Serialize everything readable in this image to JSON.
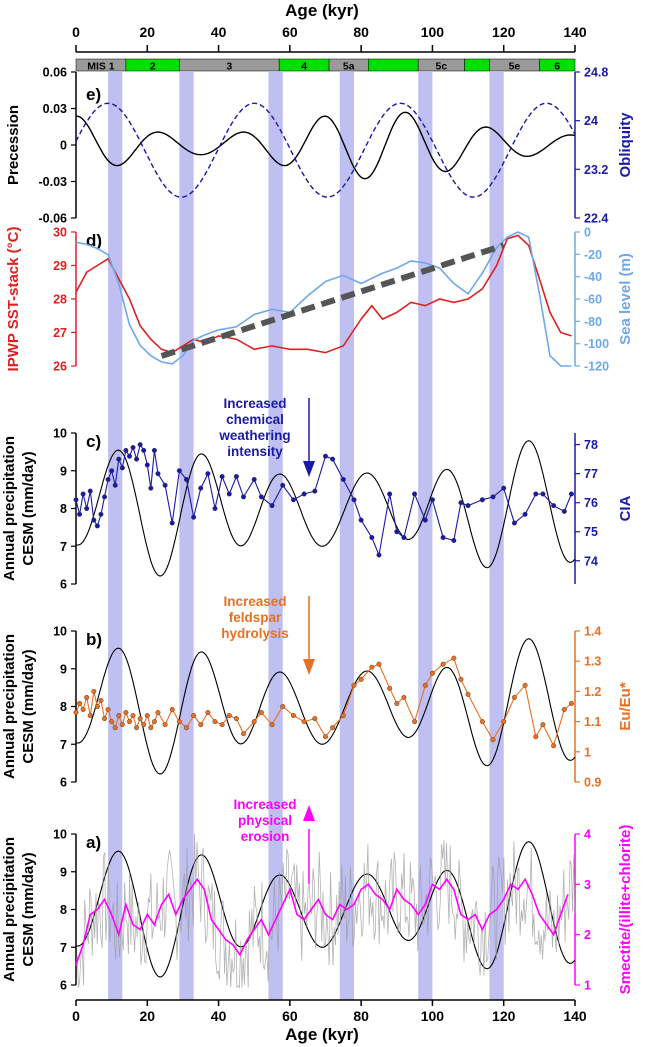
{
  "chart_data": {
    "type": "line",
    "x_axis": {
      "label": "Age (kyr)",
      "ticks": [
        0,
        20,
        40,
        60,
        80,
        100,
        120,
        140
      ],
      "range": [
        0,
        140
      ]
    },
    "mis_stages": [
      {
        "label": "MIS 1",
        "start": 0,
        "end": 14,
        "color": "#9a9a9a"
      },
      {
        "label": "2",
        "start": 14,
        "end": 29,
        "color": "#00e000"
      },
      {
        "label": "3",
        "start": 29,
        "end": 57,
        "color": "#9a9a9a"
      },
      {
        "label": "4",
        "start": 57,
        "end": 71,
        "color": "#00e000"
      },
      {
        "label": "5a",
        "start": 71,
        "end": 82,
        "color": "#9a9a9a"
      },
      {
        "label": "",
        "start": 82,
        "end": 96,
        "color": "#00e000"
      },
      {
        "label": "5c",
        "start": 96,
        "end": 109,
        "color": "#9a9a9a"
      },
      {
        "label": "",
        "start": 109,
        "end": 116,
        "color": "#00e000"
      },
      {
        "label": "5e",
        "start": 116,
        "end": 130,
        "color": "#9a9a9a"
      },
      {
        "label": "6",
        "start": 130,
        "end": 140,
        "color": "#00e000"
      }
    ],
    "shaded_bands": [
      [
        9,
        13
      ],
      [
        29,
        33
      ],
      [
        54,
        58
      ],
      [
        74,
        78
      ],
      [
        96,
        100
      ],
      [
        116,
        120
      ]
    ],
    "panels": [
      {
        "id": "e",
        "label": "e)",
        "left_axis": {
          "label": "Precession",
          "ticks": [
            "-0.06",
            "-0.03",
            "0",
            "0.03",
            "0.06"
          ],
          "range": [
            -0.06,
            0.06
          ],
          "inverted": true,
          "color": "#000000"
        },
        "right_axis": {
          "label": "Obliquity",
          "ticks": [
            "22.4",
            "23.2",
            "24",
            "24.8"
          ],
          "range": [
            22.0,
            24.8
          ],
          "color": "#1a1aa6"
        },
        "series": [
          {
            "axis": "left",
            "color": "#000000",
            "style": "solid",
            "type": "precession"
          },
          {
            "axis": "right",
            "color": "#1a1aa6",
            "style": "dashed",
            "type": "obliquity"
          }
        ]
      },
      {
        "id": "d",
        "label": "d)",
        "left_axis": {
          "label": "IPWP SST-stack (°C)",
          "ticks": [
            "26",
            "27",
            "28",
            "29",
            "30"
          ],
          "range": [
            26,
            30
          ],
          "color": "#e02020"
        },
        "right_axis": {
          "label": "Sea level (m)",
          "ticks": [
            "-120",
            "-100",
            "-80",
            "-60",
            "-40",
            "-20",
            "0"
          ],
          "range": [
            -120,
            10
          ],
          "color": "#6fa8e8"
        },
        "series": [
          {
            "axis": "left",
            "color": "#e02020",
            "x": [
              0,
              3,
              6,
              9,
              12,
              15,
              18,
              21,
              24,
              27,
              30,
              33,
              36,
              40,
              45,
              50,
              55,
              60,
              65,
              70,
              75,
              80,
              83,
              86,
              90,
              94,
              98,
              102,
              106,
              110,
              114,
              118,
              121,
              124,
              127,
              130,
              133,
              136,
              139
            ],
            "y": [
              28.2,
              28.8,
              29.0,
              29.2,
              28.6,
              28.0,
              27.2,
              26.8,
              26.5,
              26.4,
              26.6,
              26.8,
              26.7,
              26.9,
              26.8,
              26.5,
              26.6,
              26.5,
              26.5,
              26.4,
              26.6,
              27.4,
              27.8,
              27.4,
              27.6,
              27.9,
              27.8,
              28.0,
              27.9,
              28.0,
              28.3,
              29.0,
              29.8,
              29.9,
              29.6,
              28.6,
              27.6,
              27.0,
              26.9
            ]
          },
          {
            "axis": "right",
            "color": "#6fa8e8",
            "x": [
              0,
              3,
              6,
              9,
              12,
              15,
              18,
              21,
              24,
              27,
              30,
              33,
              36,
              40,
              45,
              50,
              55,
              60,
              65,
              70,
              75,
              80,
              83,
              86,
              90,
              94,
              98,
              102,
              106,
              110,
              114,
              118,
              121,
              124,
              127,
              130,
              133,
              136,
              139
            ],
            "y": [
              0,
              -2,
              -6,
              -12,
              -40,
              -80,
              -100,
              -110,
              -116,
              -118,
              -110,
              -95,
              -90,
              -85,
              -82,
              -70,
              -65,
              -68,
              -52,
              -38,
              -32,
              -40,
              -35,
              -30,
              -25,
              -18,
              -20,
              -25,
              -40,
              -50,
              -30,
              -5,
              5,
              10,
              5,
              -50,
              -110,
              -120,
              -120
            ]
          }
        ],
        "trend": {
          "x": [
            24,
            120
          ],
          "y": [
            26.3,
            29.6
          ],
          "axis": "left",
          "color": "#555555",
          "style": "dashed"
        }
      },
      {
        "id": "c",
        "label": "c)",
        "left_axis": {
          "label": "Annual precipitation CESM (mm/day)",
          "ticks": [
            "6",
            "7",
            "8",
            "9",
            "10"
          ],
          "range": [
            6,
            10
          ],
          "color": "#000000"
        },
        "right_axis": {
          "label": "CIA",
          "ticks": [
            "74",
            "75",
            "76",
            "77",
            "78"
          ],
          "range": [
            78.4,
            73.2
          ],
          "inverted": true,
          "color": "#1a1aa6"
        },
        "annotation": {
          "text": [
            "Increased",
            "chemical",
            "weathering",
            "intensity"
          ],
          "color": "#1a1aa6",
          "arrow": "down"
        },
        "series": [
          {
            "axis": "left",
            "color": "#000000",
            "type": "precip"
          },
          {
            "axis": "right",
            "color": "#1a1aa6",
            "marker": "circle",
            "x": [
              0,
              1,
              2,
              3,
              4,
              5,
              6,
              7,
              8,
              9,
              10,
              11,
              12,
              13,
              14,
              15,
              16,
              17,
              18,
              19,
              20,
              21,
              22,
              23,
              25,
              27,
              29,
              31,
              33,
              35,
              37,
              39,
              41,
              43,
              45,
              47,
              50,
              52,
              55,
              58,
              61,
              64,
              67,
              70,
              72,
              75,
              78,
              80,
              83,
              85,
              88,
              90,
              92,
              95,
              98,
              100,
              103,
              106,
              108,
              110,
              114,
              117,
              120,
              123,
              126,
              129,
              131,
              134,
              137,
              139
            ],
            "y": [
              76.1,
              75.6,
              76.3,
              75.8,
              76.4,
              75.4,
              75.2,
              75.6,
              76.2,
              76.8,
              77.1,
              76.6,
              77.5,
              77.2,
              77.8,
              77.6,
              77.9,
              77.5,
              78.0,
              77.8,
              77.3,
              76.5,
              77.8,
              77.0,
              76.6,
              75.3,
              77.1,
              76.8,
              75.5,
              76.5,
              77.0,
              75.8,
              76.9,
              76.3,
              76.9,
              76.2,
              76.8,
              76.2,
              75.9,
              76.6,
              76.1,
              76.3,
              76.4,
              77.6,
              77.5,
              76.8,
              76.1,
              75.4,
              74.8,
              74.2,
              76.3,
              75.0,
              74.8,
              76.3,
              75.4,
              76.1,
              74.8,
              74.7,
              76.0,
              75.9,
              76.1,
              76.2,
              76.5,
              75.3,
              75.6,
              76.3,
              76.3,
              75.9,
              75.7,
              76.3
            ]
          }
        ]
      },
      {
        "id": "b",
        "label": "b)",
        "left_axis": {
          "label": "Annual precipitation CESM (mm/day)",
          "ticks": [
            "6",
            "7",
            "8",
            "9",
            "10"
          ],
          "range": [
            6,
            10
          ],
          "color": "#000000"
        },
        "right_axis": {
          "label": "Eu/Eu*",
          "ticks": [
            "0.9",
            "1",
            "1.1",
            "1.2",
            "1.3",
            "1.4"
          ],
          "range": [
            0.9,
            1.4
          ],
          "color": "#e87020"
        },
        "annotation": {
          "text": [
            "Increased",
            "feldspar",
            "hydrolysis"
          ],
          "color": "#e87020",
          "arrow": "down"
        },
        "series": [
          {
            "axis": "left",
            "color": "#000000",
            "type": "precip"
          },
          {
            "axis": "right",
            "color": "#e87020",
            "marker": "circle",
            "x": [
              0,
              1,
              2,
              3,
              4,
              5,
              6,
              7,
              8,
              9,
              10,
              11,
              12,
              13,
              14,
              15,
              16,
              17,
              18,
              19,
              20,
              21,
              22,
              23,
              25,
              27,
              29,
              31,
              33,
              35,
              37,
              39,
              41,
              43,
              45,
              47,
              50,
              52,
              55,
              58,
              61,
              64,
              67,
              70,
              72,
              75,
              78,
              80,
              83,
              85,
              88,
              90,
              92,
              95,
              98,
              100,
              103,
              106,
              108,
              110,
              114,
              117,
              120,
              123,
              126,
              129,
              131,
              134,
              137,
              139
            ],
            "y": [
              1.13,
              1.16,
              1.14,
              1.18,
              1.12,
              1.2,
              1.15,
              1.17,
              1.11,
              1.14,
              1.1,
              1.08,
              1.12,
              1.09,
              1.13,
              1.1,
              1.12,
              1.08,
              1.11,
              1.09,
              1.12,
              1.08,
              1.1,
              1.13,
              1.09,
              1.14,
              1.1,
              1.08,
              1.12,
              1.09,
              1.13,
              1.1,
              1.09,
              1.12,
              1.11,
              1.06,
              1.1,
              1.13,
              1.09,
              1.15,
              1.12,
              1.1,
              1.11,
              1.05,
              1.08,
              1.12,
              1.22,
              1.24,
              1.28,
              1.29,
              1.21,
              1.16,
              1.18,
              1.1,
              1.22,
              1.26,
              1.29,
              1.31,
              1.24,
              1.19,
              1.1,
              1.04,
              1.1,
              1.18,
              1.22,
              1.05,
              1.09,
              1.02,
              1.14,
              1.16
            ]
          }
        ]
      },
      {
        "id": "a",
        "label": "a)",
        "left_axis": {
          "label": "Annual precipitation CESM (mm/day)",
          "ticks": [
            "6",
            "7",
            "8",
            "9",
            "10"
          ],
          "range": [
            6,
            10
          ],
          "color": "#000000"
        },
        "right_axis": {
          "label": "Smectite/(illite+chlorite)",
          "ticks": [
            "1",
            "2",
            "3",
            "4"
          ],
          "range": [
            1,
            4
          ],
          "color": "#ff00ff"
        },
        "annotation": {
          "text": [
            "Increased",
            "physical",
            "erosion"
          ],
          "color": "#ff00ff",
          "arrow": "up"
        },
        "series": [
          {
            "axis": "left",
            "color": "#000000",
            "type": "precip"
          },
          {
            "axis": "right",
            "color": "#9a9a9a",
            "type": "noisy"
          },
          {
            "axis": "right",
            "color": "#ff00ff",
            "x": [
              0,
              2,
              4,
              6,
              8,
              10,
              12,
              14,
              16,
              18,
              20,
              22,
              24,
              26,
              28,
              30,
              32,
              34,
              36,
              38,
              40,
              42,
              44,
              46,
              48,
              50,
              52,
              54,
              56,
              58,
              60,
              62,
              64,
              66,
              68,
              70,
              72,
              74,
              76,
              78,
              80,
              82,
              84,
              86,
              88,
              90,
              92,
              94,
              96,
              98,
              100,
              102,
              104,
              106,
              108,
              110,
              112,
              114,
              116,
              118,
              120,
              122,
              124,
              126,
              128,
              130,
              132,
              134,
              136,
              138
            ],
            "y": [
              1.4,
              1.8,
              2.4,
              2.5,
              2.7,
              2.4,
              2.0,
              2.6,
              2.2,
              2.1,
              2.4,
              2.2,
              2.6,
              2.8,
              2.4,
              2.7,
              2.9,
              3.1,
              2.9,
              2.3,
              2.1,
              1.9,
              1.8,
              1.6,
              1.9,
              2.1,
              2.3,
              2.0,
              2.3,
              2.6,
              2.9,
              2.4,
              2.3,
              2.5,
              2.7,
              2.4,
              2.3,
              2.6,
              2.5,
              2.6,
              2.9,
              3.0,
              2.8,
              2.7,
              2.5,
              2.9,
              2.7,
              2.6,
              2.4,
              2.6,
              3.0,
              2.9,
              3.1,
              2.9,
              2.4,
              2.3,
              2.4,
              2.1,
              2.4,
              2.5,
              2.7,
              3.0,
              2.9,
              3.1,
              2.8,
              2.4,
              2.2,
              2.0,
              2.4,
              2.8
            ]
          }
        ]
      }
    ],
    "bottom_axis_label": "Age (kyr)"
  }
}
